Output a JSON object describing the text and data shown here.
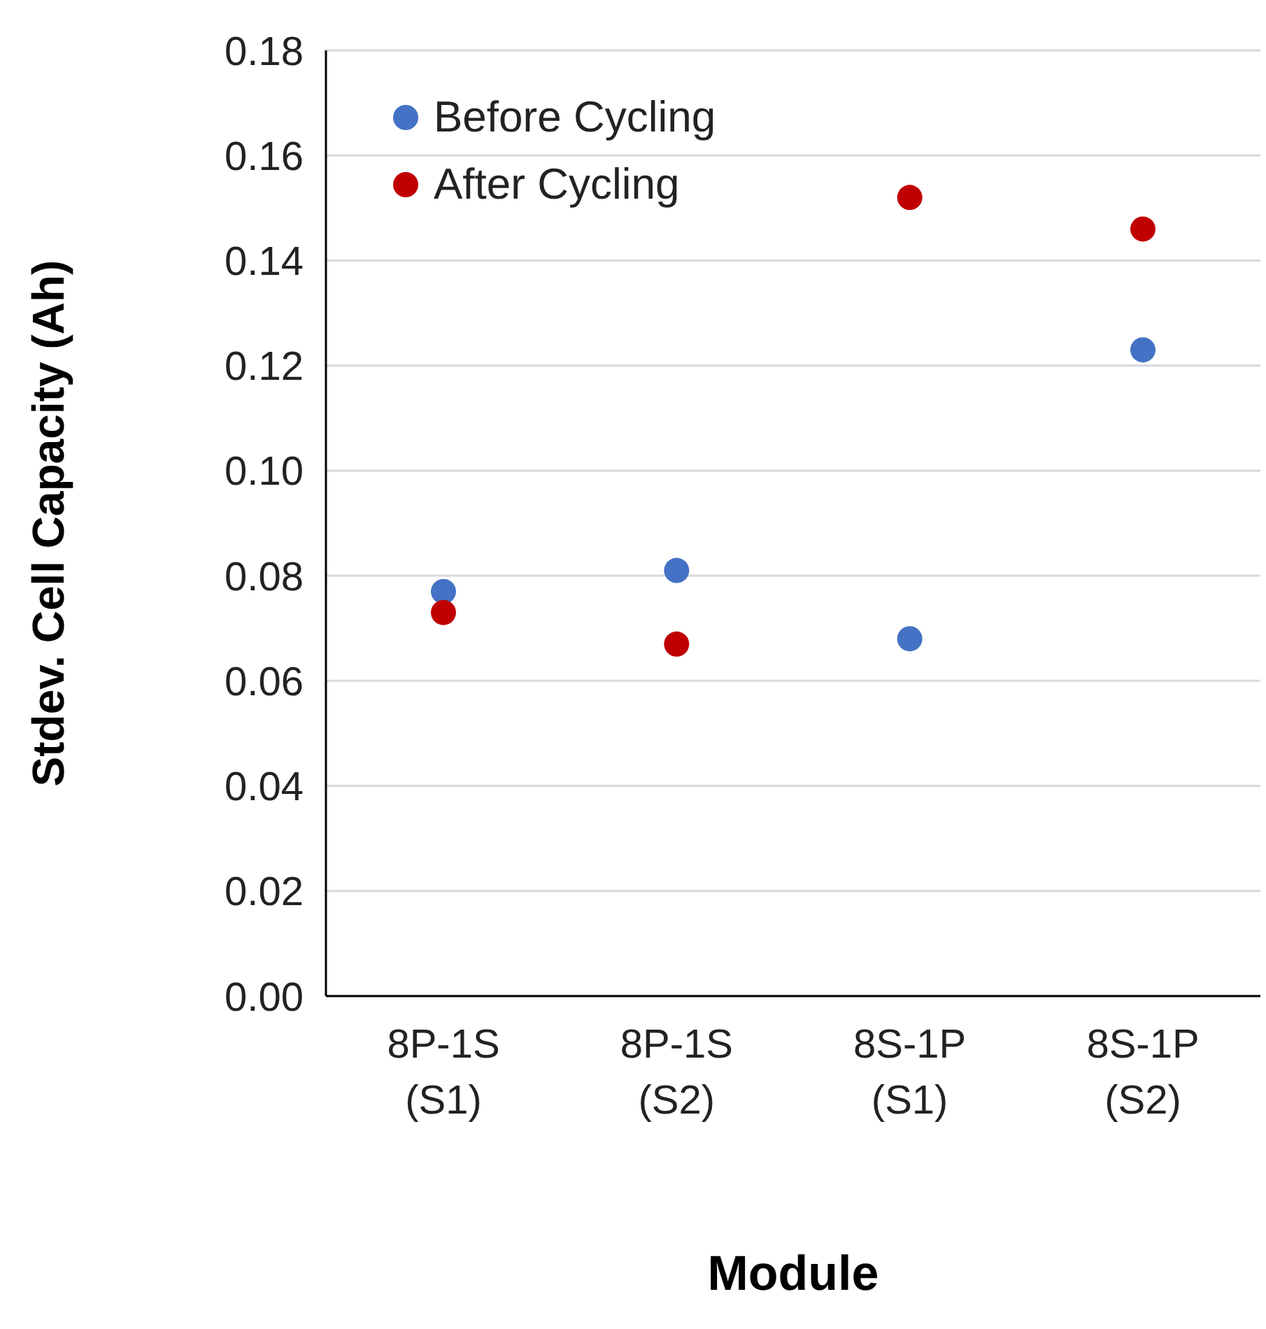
{
  "chart_data": {
    "type": "scatter",
    "xlabel": "Module",
    "ylabel": "Stdev. Cell Capacity (Ah)",
    "categories": [
      "8P-1S (S1)",
      "8P-1S (S2)",
      "8S-1P (S1)",
      "8S-1P (S2)"
    ],
    "series": [
      {
        "name": "Before Cycling",
        "color": "#4472c4",
        "values": [
          0.077,
          0.081,
          0.068,
          0.123
        ]
      },
      {
        "name": "After Cycling",
        "color": "#c00000",
        "values": [
          0.073,
          0.067,
          0.152,
          0.146
        ]
      }
    ],
    "ylim": [
      0,
      0.18
    ],
    "yticks": [
      {
        "value": 0,
        "label": "0.00"
      },
      0.02,
      0.04,
      0.06,
      0.08,
      {
        "value": 0.1,
        "label": "0.10"
      },
      0.12,
      0.14,
      0.16,
      0.18
    ],
    "grid": "y",
    "legend": "top left",
    "marker": "circle"
  }
}
